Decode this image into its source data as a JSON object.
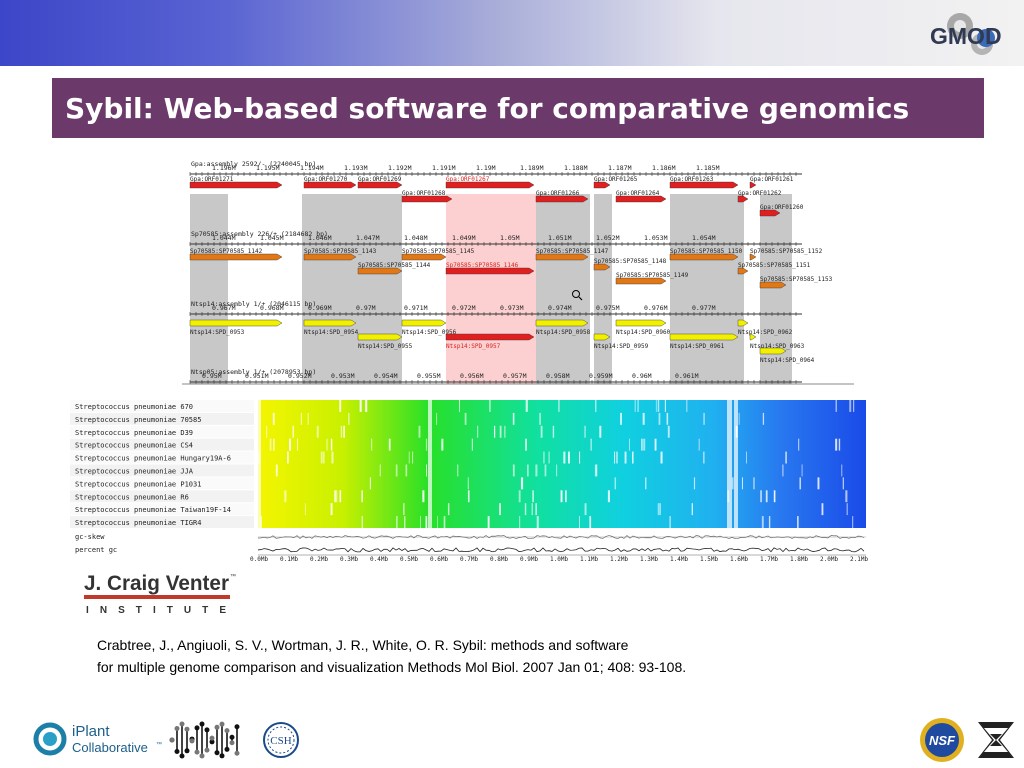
{
  "slide": {
    "title": "Sybil: Web-based software for comparative genomics",
    "citation_line1": "Crabtree, J., Angiuoli, S. V., Wortman, J. R., White, O. R. Sybil: methods and software",
    "citation_line2": "for multiple genome comparison and visualization Methods Mol Biol. 2007 Jan 01; 408: 93-108."
  },
  "colors": {
    "title_bg": "#6b3a6b",
    "gene_red": "#e02020",
    "gene_orange": "#e07818",
    "gene_yellow": "#f0f000",
    "highlight_pink": "#fcd0d0",
    "block_gray": "#c8c8c8"
  },
  "logos": {
    "gmod": "GMOD",
    "jcvi_main": "J. Craig Venter",
    "jcvi_tm": "™",
    "jcvi_sub": "I N S T I T U T E",
    "iplant_line1": "iPlant",
    "iplant_line2": "Collaborative",
    "iplant_tm": "™",
    "csh": "CSH",
    "nsf": "NSF"
  },
  "sybil": {
    "tracks": [
      {
        "label": "Gpa:assembly 2592/- (2240045 bp)",
        "ticks": [
          "1.196M",
          "1.195M",
          "1.194M",
          "1.193M",
          "1.192M",
          "1.191M",
          "1.19M",
          "1.189M",
          "1.188M",
          "1.187M",
          "1.186M",
          "1.185M"
        ]
      },
      {
        "label": "Sp70585:assembly 226/+ (2184682 bp)",
        "ticks": [
          "1.044M",
          "1.045M",
          "1.046M",
          "1.047M",
          "1.048M",
          "1.049M",
          "1.05M",
          "1.051M",
          "1.052M",
          "1.053M",
          "1.054M"
        ]
      },
      {
        "label": "Ntsp14:assembly 1/+ (2046115 bp)",
        "ticks": [
          "0.967M",
          "0.968M",
          "0.969M",
          "0.97M",
          "0.971M",
          "0.972M",
          "0.973M",
          "0.974M",
          "0.975M",
          "0.976M",
          "0.977M"
        ]
      },
      {
        "label": "Ntsp05:assembly 1/+ (2078953 bp)",
        "ticks": [
          "0.95M",
          "0.951M",
          "0.952M",
          "0.953M",
          "0.954M",
          "0.955M",
          "0.956M",
          "0.957M",
          "0.958M",
          "0.959M",
          "0.96M",
          "0.961M"
        ]
      }
    ],
    "genes_gpa": [
      "Gpa:ORF01271",
      "Gpa:ORF01270",
      "Gpa:ORF01269",
      "Gpa:ORF01268",
      "Gpa:ORF01267",
      "Gpa:ORF01266",
      "Gpa:ORF01265",
      "Gpa:ORF01264",
      "Gpa:ORF01263",
      "Gpa:ORF01262",
      "Gpa:ORF01261",
      "Gpa:ORF01260"
    ],
    "genes_sp": [
      "Sp70585:SP70585_1142",
      "Sp70585:SP70585_1143",
      "Sp70585:SP70585_1144",
      "Sp70585:SP70585_1145",
      "Sp70585:SP70585_1146",
      "Sp70585:SP70585_1147",
      "Sp70585:SP70585_1148",
      "Sp70585:SP70585_1149",
      "Sp70585:SP70585_1150",
      "Sp70585:SP70585_1151",
      "Sp70585:SP70585_1152",
      "Sp70585:SP70585_1153"
    ],
    "genes_nt": [
      "Ntsp14:SPD_0953",
      "Ntsp14:SPD_0954",
      "Ntsp14:SPD_0955",
      "Ntsp14:SPD_0956",
      "Ntsp14:SPD_0957",
      "Ntsp14:SPD_0958",
      "Ntsp14:SPD_0959",
      "Ntsp14:SPD_0960",
      "Ntsp14:SPD_0961",
      "Ntsp14:SPD_0962",
      "Ntsp14:SPD_0963",
      "Ntsp14:SPD_0964"
    ]
  },
  "heatmap": {
    "rows": [
      "Streptococcus pneumoniae 670",
      "Streptococcus pneumoniae 70585",
      "Streptococcus pneumoniae D39",
      "Streptococcus pneumoniae CS4",
      "Streptococcus pneumoniae Hungary19A-6",
      "Streptococcus pneumoniae JJA",
      "Streptococcus pneumoniae P1031",
      "Streptococcus pneumoniae R6",
      "Streptococcus pneumoniae Taiwan19F-14",
      "Streptococcus pneumoniae TIGR4"
    ],
    "extra_rows": [
      "gc-skew",
      "percent gc"
    ],
    "axis_ticks": [
      "0.0Mb",
      "0.1Mb",
      "0.2Mb",
      "0.3Mb",
      "0.4Mb",
      "0.5Mb",
      "0.6Mb",
      "0.7Mb",
      "0.8Mb",
      "0.9Mb",
      "1.0Mb",
      "1.1Mb",
      "1.2Mb",
      "1.3Mb",
      "1.4Mb",
      "1.5Mb",
      "1.6Mb",
      "1.7Mb",
      "1.8Mb",
      "2.0Mb",
      "2.1Mb"
    ]
  }
}
